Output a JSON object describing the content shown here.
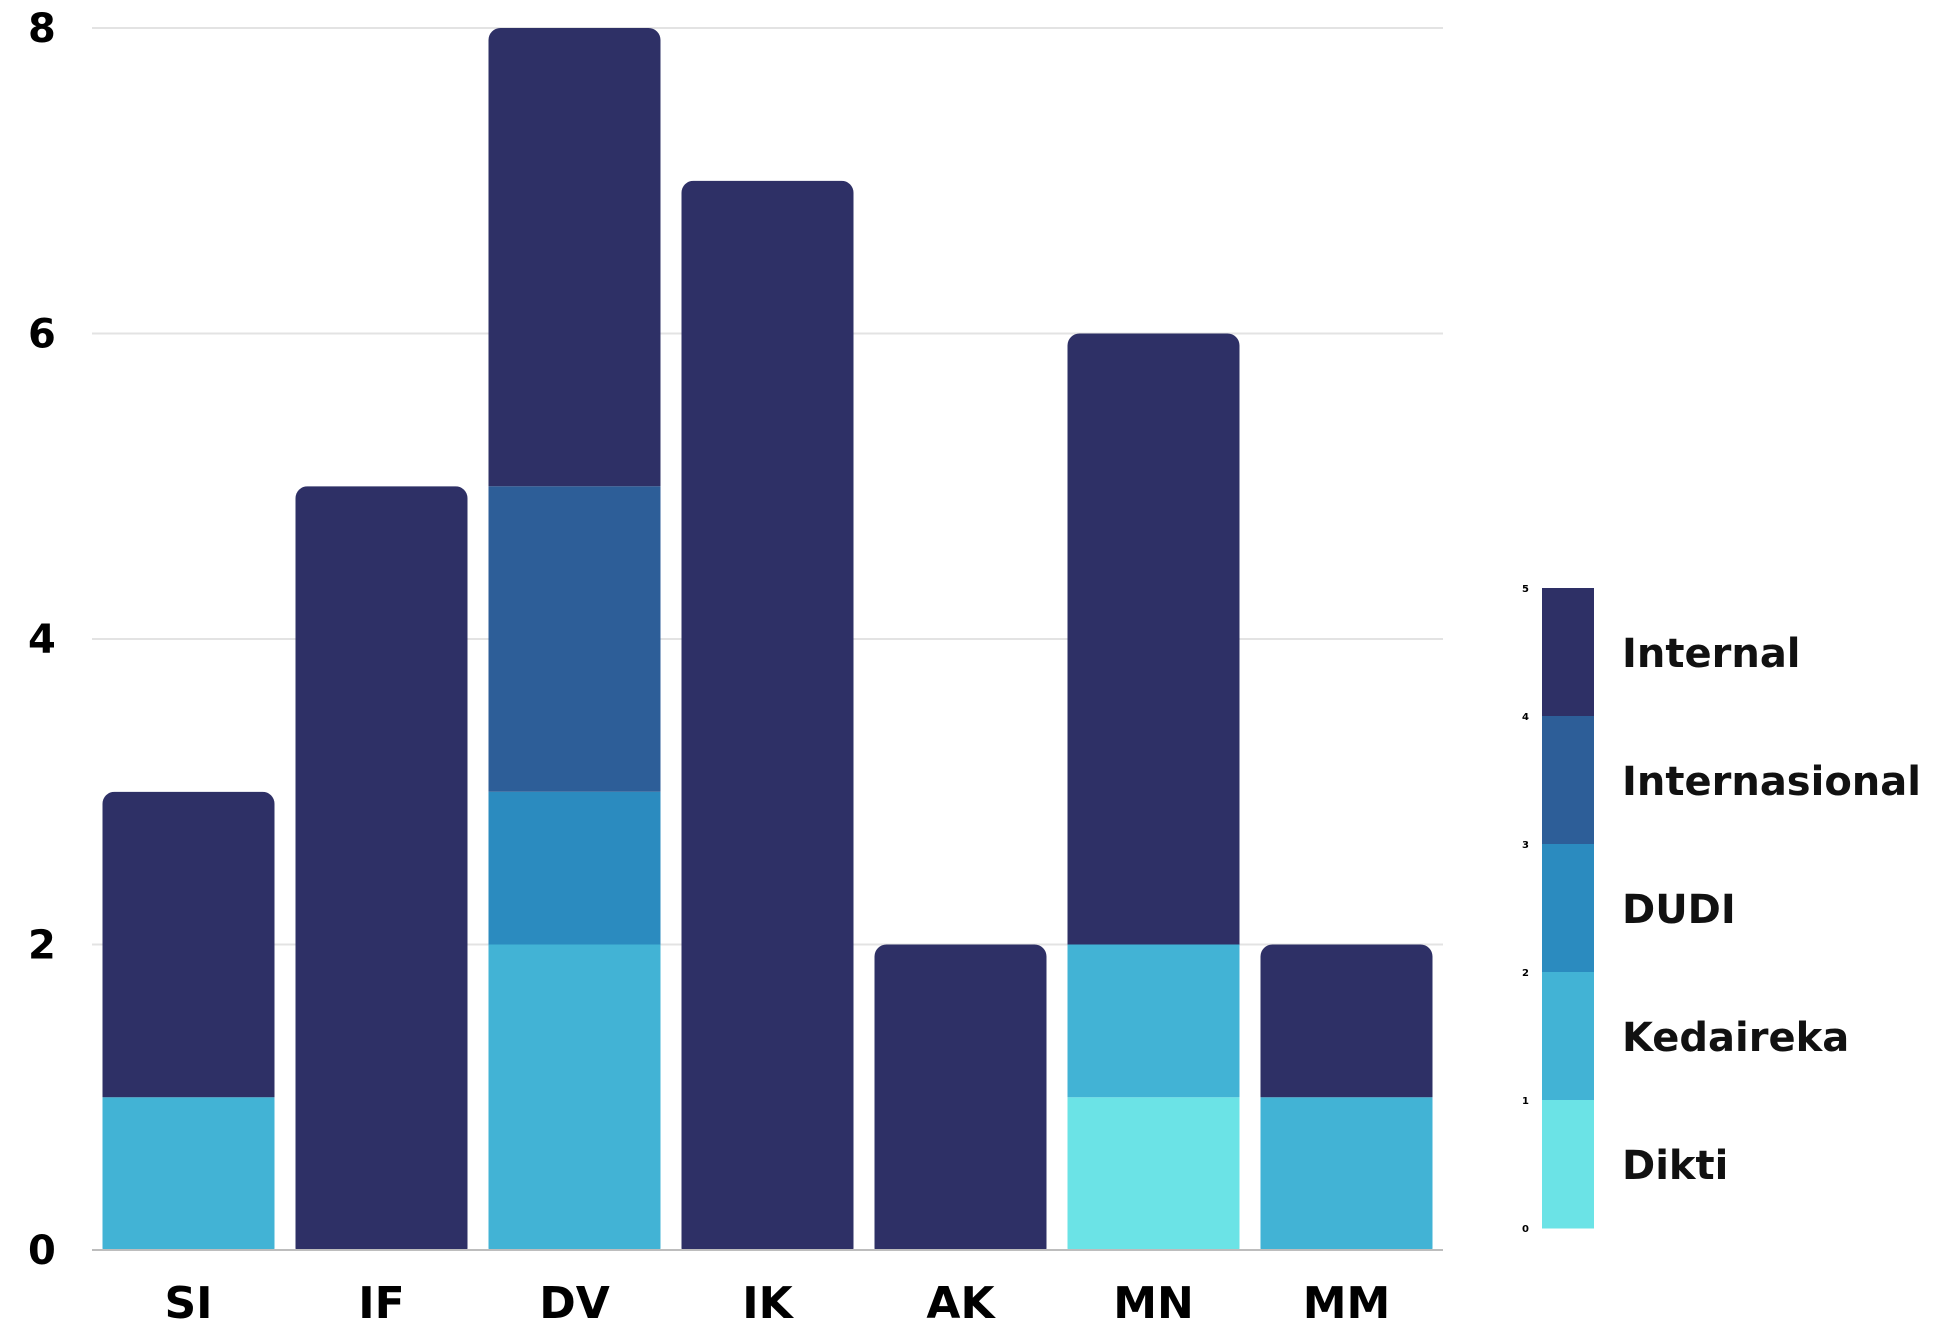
{
  "chart_data": {
    "type": "bar",
    "stacked": true,
    "categories": [
      "SI",
      "IF",
      "DV",
      "IK",
      "AK",
      "MN",
      "MM"
    ],
    "series": [
      {
        "name": "Dikti",
        "color": "#6be3e6",
        "values": [
          0,
          0,
          0,
          0,
          0,
          1,
          0
        ]
      },
      {
        "name": "Kedaireka",
        "color": "#42b3d5",
        "values": [
          1,
          0,
          2,
          0,
          0,
          1,
          1
        ]
      },
      {
        "name": "DUDI",
        "color": "#2b8bbf",
        "values": [
          0,
          0,
          1,
          0,
          0,
          0,
          0
        ]
      },
      {
        "name": "Internasional",
        "color": "#2d5e98",
        "values": [
          0,
          0,
          2,
          0,
          0,
          0,
          0
        ]
      },
      {
        "name": "Internal",
        "color": "#2e3066",
        "values": [
          2,
          5,
          3,
          7,
          2,
          4,
          1
        ]
      }
    ],
    "yticks": [
      "0",
      "2",
      "4",
      "6",
      "8"
    ],
    "ylim": [
      0,
      8
    ],
    "grid": true,
    "legend_position": "right",
    "legend_order": [
      "Internal",
      "Internasional",
      "DUDI",
      "Kedaireka",
      "Dikti"
    ],
    "legend_scale_ticks": [
      "0",
      "1",
      "2",
      "3",
      "4",
      "5"
    ],
    "title": "",
    "xlabel": "",
    "ylabel": ""
  }
}
